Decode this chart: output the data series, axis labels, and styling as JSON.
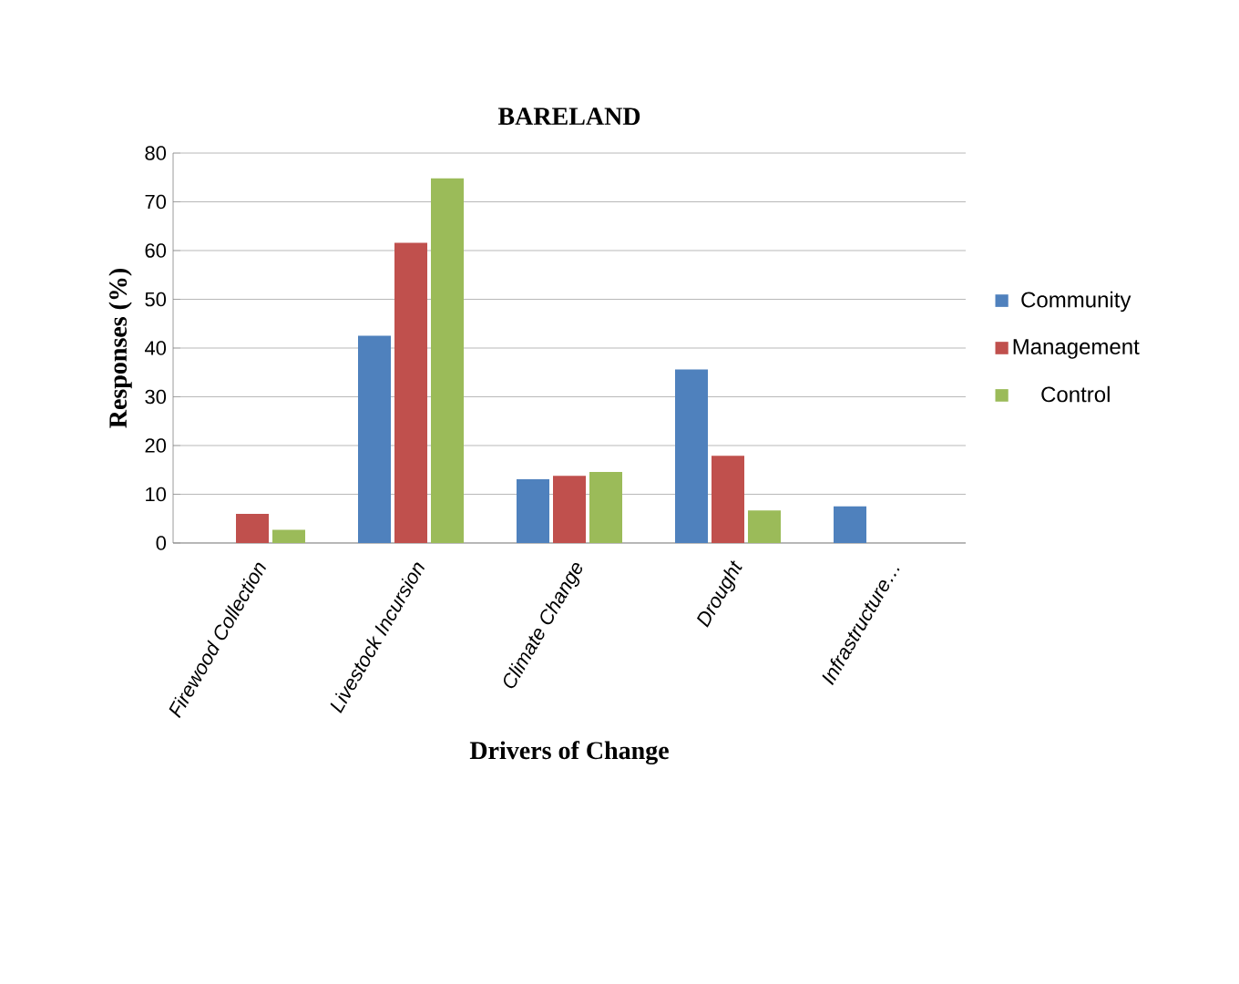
{
  "chart_data": {
    "type": "bar",
    "title": "BARELAND",
    "xlabel": "Drivers of Change",
    "ylabel": "Responses  (%)",
    "categories": [
      "Firewood Collection",
      "Livestock Incursion",
      "Climate Change",
      "Drought",
      "Infrastructure…"
    ],
    "series": [
      {
        "name": "Community",
        "color": "#4f81bd",
        "values": [
          0,
          42.5,
          13.1,
          35.6,
          7.5
        ]
      },
      {
        "name": "Management",
        "color": "#c0504d",
        "values": [
          6.0,
          61.6,
          13.8,
          17.9,
          0
        ]
      },
      {
        "name": "Control",
        "color": "#9bbb59",
        "values": [
          2.7,
          74.8,
          14.6,
          6.7,
          0
        ]
      }
    ],
    "ylim": [
      0,
      80
    ],
    "yticks": [
      0,
      10,
      20,
      30,
      40,
      50,
      60,
      70,
      80
    ],
    "grid": "y",
    "legend": "right"
  }
}
